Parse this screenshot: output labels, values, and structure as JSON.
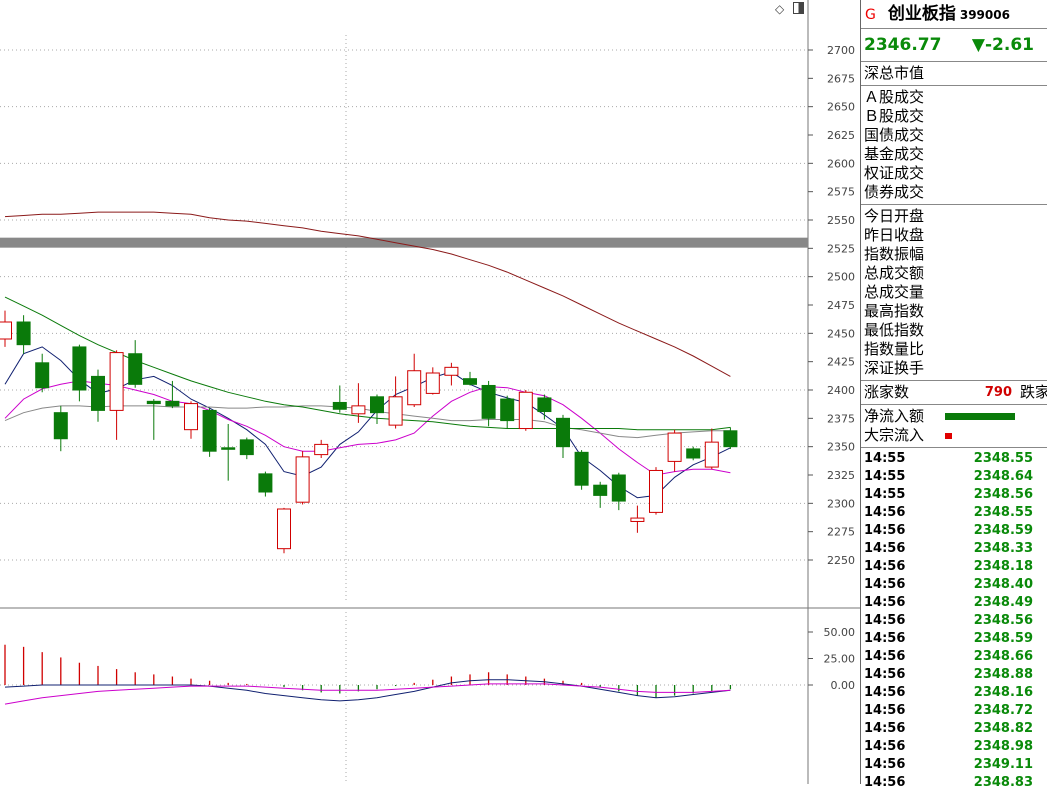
{
  "chart_data": {
    "type": "candlestick",
    "y_axis": {
      "min": 2225,
      "max": 2712.5,
      "ticks": [
        2700,
        2675,
        2650,
        2625,
        2600,
        2575,
        2550,
        2525,
        2500,
        2475,
        2450,
        2425,
        2400,
        2375,
        2350,
        2325,
        2300,
        2275,
        2250
      ]
    },
    "reference_band": 2530,
    "candles": [
      {
        "o": 2445,
        "c": 2460,
        "h": 2470,
        "l": 2438
      },
      {
        "o": 2460,
        "c": 2440,
        "h": 2466,
        "l": 2432
      },
      {
        "o": 2424,
        "c": 2402,
        "h": 2432,
        "l": 2398
      },
      {
        "o": 2380,
        "c": 2357,
        "h": 2386,
        "l": 2346
      },
      {
        "o": 2438,
        "c": 2400,
        "h": 2440,
        "l": 2390
      },
      {
        "o": 2412,
        "c": 2382,
        "h": 2418,
        "l": 2372
      },
      {
        "o": 2382,
        "c": 2433,
        "h": 2435,
        "l": 2356
      },
      {
        "o": 2432,
        "c": 2405,
        "h": 2444,
        "l": 2402
      },
      {
        "o": 2390,
        "c": 2388,
        "h": 2392,
        "l": 2356
      },
      {
        "o": 2390,
        "c": 2386,
        "h": 2408,
        "l": 2384
      },
      {
        "o": 2365,
        "c": 2388,
        "h": 2390,
        "l": 2357
      },
      {
        "o": 2382,
        "c": 2346,
        "h": 2384,
        "l": 2341
      },
      {
        "o": 2349,
        "c": 2348,
        "h": 2370,
        "l": 2320
      },
      {
        "o": 2356,
        "c": 2343,
        "h": 2358,
        "l": 2339
      },
      {
        "o": 2326,
        "c": 2310,
        "h": 2328,
        "l": 2306
      },
      {
        "o": 2260,
        "c": 2295,
        "h": 2296,
        "l": 2256
      },
      {
        "o": 2301,
        "c": 2341,
        "h": 2346,
        "l": 2299
      },
      {
        "o": 2343,
        "c": 2352,
        "h": 2356,
        "l": 2340
      },
      {
        "o": 2389,
        "c": 2383,
        "h": 2404,
        "l": 2380
      },
      {
        "o": 2379,
        "c": 2386,
        "h": 2406,
        "l": 2371
      },
      {
        "o": 2394,
        "c": 2380,
        "h": 2396,
        "l": 2370
      },
      {
        "o": 2369,
        "c": 2394,
        "h": 2412,
        "l": 2366
      },
      {
        "o": 2387,
        "c": 2417,
        "h": 2432,
        "l": 2385
      },
      {
        "o": 2397,
        "c": 2415,
        "h": 2420,
        "l": 2396
      },
      {
        "o": 2413,
        "c": 2420,
        "h": 2424,
        "l": 2404
      },
      {
        "o": 2410,
        "c": 2405,
        "h": 2416,
        "l": 2404
      },
      {
        "o": 2404,
        "c": 2375,
        "h": 2408,
        "l": 2368
      },
      {
        "o": 2392,
        "c": 2373,
        "h": 2395,
        "l": 2366
      },
      {
        "o": 2366,
        "c": 2398,
        "h": 2400,
        "l": 2364
      },
      {
        "o": 2393,
        "c": 2381,
        "h": 2396,
        "l": 2374
      },
      {
        "o": 2375,
        "c": 2350,
        "h": 2378,
        "l": 2340
      },
      {
        "o": 2345,
        "c": 2316,
        "h": 2347,
        "l": 2312
      },
      {
        "o": 2316,
        "c": 2307,
        "h": 2319,
        "l": 2296
      },
      {
        "o": 2325,
        "c": 2302,
        "h": 2327,
        "l": 2294
      },
      {
        "o": 2284,
        "c": 2287,
        "h": 2298,
        "l": 2274
      },
      {
        "o": 2292,
        "c": 2329,
        "h": 2332,
        "l": 2290
      },
      {
        "o": 2337,
        "c": 2362,
        "h": 2365,
        "l": 2328
      },
      {
        "o": 2348,
        "c": 2340,
        "h": 2350,
        "l": 2338
      },
      {
        "o": 2332,
        "c": 2354,
        "h": 2366,
        "l": 2330
      },
      {
        "o": 2364,
        "c": 2350,
        "h": 2367,
        "l": 2348
      }
    ],
    "ma_lines": [
      {
        "name": "MA5",
        "color": "#102070",
        "values": [
          2405,
          2432,
          2438,
          2426,
          2409,
          2397,
          2401,
          2409,
          2412,
          2404,
          2392,
          2384,
          2375,
          2365,
          2352,
          2328,
          2324,
          2332,
          2352,
          2363,
          2382,
          2396,
          2403,
          2411,
          2416,
          2405,
          2398,
          2393,
          2389,
          2378,
          2366,
          2341,
          2329,
          2315,
          2305,
          2307,
          2323,
          2334,
          2341,
          2349
        ]
      },
      {
        "name": "MA10",
        "color": "#cc00cc",
        "values": [
          2375,
          2392,
          2401,
          2405,
          2408,
          2406,
          2404,
          2400,
          2396,
          2390,
          2388,
          2382,
          2374,
          2368,
          2360,
          2350,
          2346,
          2346,
          2349,
          2352,
          2353,
          2356,
          2362,
          2377,
          2390,
          2398,
          2403,
          2402,
          2398,
          2395,
          2387,
          2375,
          2362,
          2348,
          2336,
          2325,
          2328,
          2330,
          2330,
          2327
        ]
      },
      {
        "name": "MA20",
        "color": "#888888",
        "values": [
          2373,
          2380,
          2384,
          2386,
          2386,
          2385,
          2386,
          2386,
          2386,
          2385,
          2385,
          2385,
          2384,
          2384,
          2385,
          2385,
          2386,
          2386,
          2385,
          2384,
          2381,
          2379,
          2377,
          2375,
          2373,
          2373,
          2374,
          2374,
          2374,
          2372,
          2367,
          2365,
          2362,
          2359,
          2358,
          2360,
          2362,
          2363,
          2364,
          2364
        ]
      },
      {
        "name": "MA60",
        "color": "#0a7a0a",
        "values": [
          2482,
          2474,
          2466,
          2457,
          2448,
          2440,
          2433,
          2426,
          2420,
          2414,
          2408,
          2403,
          2398,
          2394,
          2390,
          2387,
          2385,
          2382,
          2379,
          2377,
          2375,
          2374,
          2373,
          2372,
          2370,
          2368,
          2367,
          2366,
          2366,
          2366,
          2366,
          2366,
          2366,
          2366,
          2365,
          2365,
          2365,
          2365,
          2365,
          2367
        ]
      },
      {
        "name": "MA120",
        "color": "#8b1a1a",
        "values": [
          2553,
          2554,
          2555,
          2555,
          2556,
          2557,
          2557,
          2557,
          2557,
          2556,
          2555,
          2552,
          2550,
          2549,
          2547,
          2545,
          2543,
          2540,
          2538,
          2536,
          2533,
          2530,
          2527,
          2524,
          2520,
          2515,
          2510,
          2504,
          2497,
          2490,
          2483,
          2475,
          2467,
          2459,
          2452,
          2445,
          2438,
          2430,
          2421,
          2412
        ]
      }
    ],
    "indicator": {
      "y_axis": {
        "min": -30,
        "max": 70,
        "ticks": [
          "50.00",
          "25.00",
          "0.00"
        ]
      },
      "bars": [
        38,
        36,
        31,
        26,
        21,
        18,
        15,
        12,
        10,
        8,
        6,
        4,
        2,
        1,
        0,
        -2,
        -5,
        -7,
        -8,
        -6,
        -4,
        -1,
        2,
        5,
        8,
        10,
        12,
        10,
        8,
        6,
        4,
        2,
        -2,
        -6,
        -10,
        -12,
        -10,
        -8,
        -6,
        -4
      ],
      "line_dark": [
        -2,
        -1,
        0,
        0,
        0,
        0,
        0,
        0,
        0,
        0,
        0,
        -1,
        -3,
        -5,
        -8,
        -10,
        -12,
        -14,
        -15,
        -14,
        -12,
        -9,
        -6,
        -2,
        2,
        4,
        5,
        5,
        4,
        3,
        1,
        -1,
        -4,
        -7,
        -10,
        -12,
        -11,
        -9,
        -7,
        -5
      ],
      "line_pink": [
        -18,
        -15,
        -12,
        -10,
        -8,
        -6,
        -5,
        -4,
        -3,
        -2,
        -1,
        -1,
        -1,
        -1,
        -2,
        -3,
        -4,
        -5,
        -5,
        -5,
        -5,
        -4,
        -3,
        -2,
        -1,
        0,
        1,
        1,
        1,
        1,
        0,
        -1,
        -2,
        -4,
        -6,
        -7,
        -7,
        -7,
        -6,
        -5
      ]
    }
  },
  "panel": {
    "mark": "G",
    "name": "创业板指",
    "code": "399006",
    "price": "2346.77",
    "change": "▼-2.61",
    "market_value_label": "深总市值",
    "volume_labels": [
      "Ａ股成交",
      "Ｂ股成交",
      "国债成交",
      "基金成交",
      "权证成交",
      "债券成交"
    ],
    "stat_labels": [
      "今日开盘",
      "昨日收盘",
      "指数振幅",
      "总成交额",
      "总成交量",
      "最高指数",
      "最低指数",
      "指数量比",
      "深证换手"
    ],
    "rise_label": "涨家数",
    "rise_value": "790",
    "fall_label": "跌家",
    "netflow_label": "净流入额",
    "bigflow_label": "大宗流入",
    "ticks": [
      {
        "t": "14:55",
        "p": "2348.55"
      },
      {
        "t": "14:55",
        "p": "2348.64"
      },
      {
        "t": "14:55",
        "p": "2348.56"
      },
      {
        "t": "14:56",
        "p": "2348.55"
      },
      {
        "t": "14:56",
        "p": "2348.59"
      },
      {
        "t": "14:56",
        "p": "2348.33"
      },
      {
        "t": "14:56",
        "p": "2348.18"
      },
      {
        "t": "14:56",
        "p": "2348.40"
      },
      {
        "t": "14:56",
        "p": "2348.49"
      },
      {
        "t": "14:56",
        "p": "2348.56"
      },
      {
        "t": "14:56",
        "p": "2348.59"
      },
      {
        "t": "14:56",
        "p": "2348.66"
      },
      {
        "t": "14:56",
        "p": "2348.88"
      },
      {
        "t": "14:56",
        "p": "2348.16"
      },
      {
        "t": "14:56",
        "p": "2348.72"
      },
      {
        "t": "14:56",
        "p": "2348.82"
      },
      {
        "t": "14:56",
        "p": "2348.98"
      },
      {
        "t": "14:56",
        "p": "2349.11"
      },
      {
        "t": "14:56",
        "p": "2348.83"
      }
    ],
    "colors": {
      "up": "#d00000",
      "down": "#0a7a0a",
      "price": "#0a8a0a"
    }
  }
}
